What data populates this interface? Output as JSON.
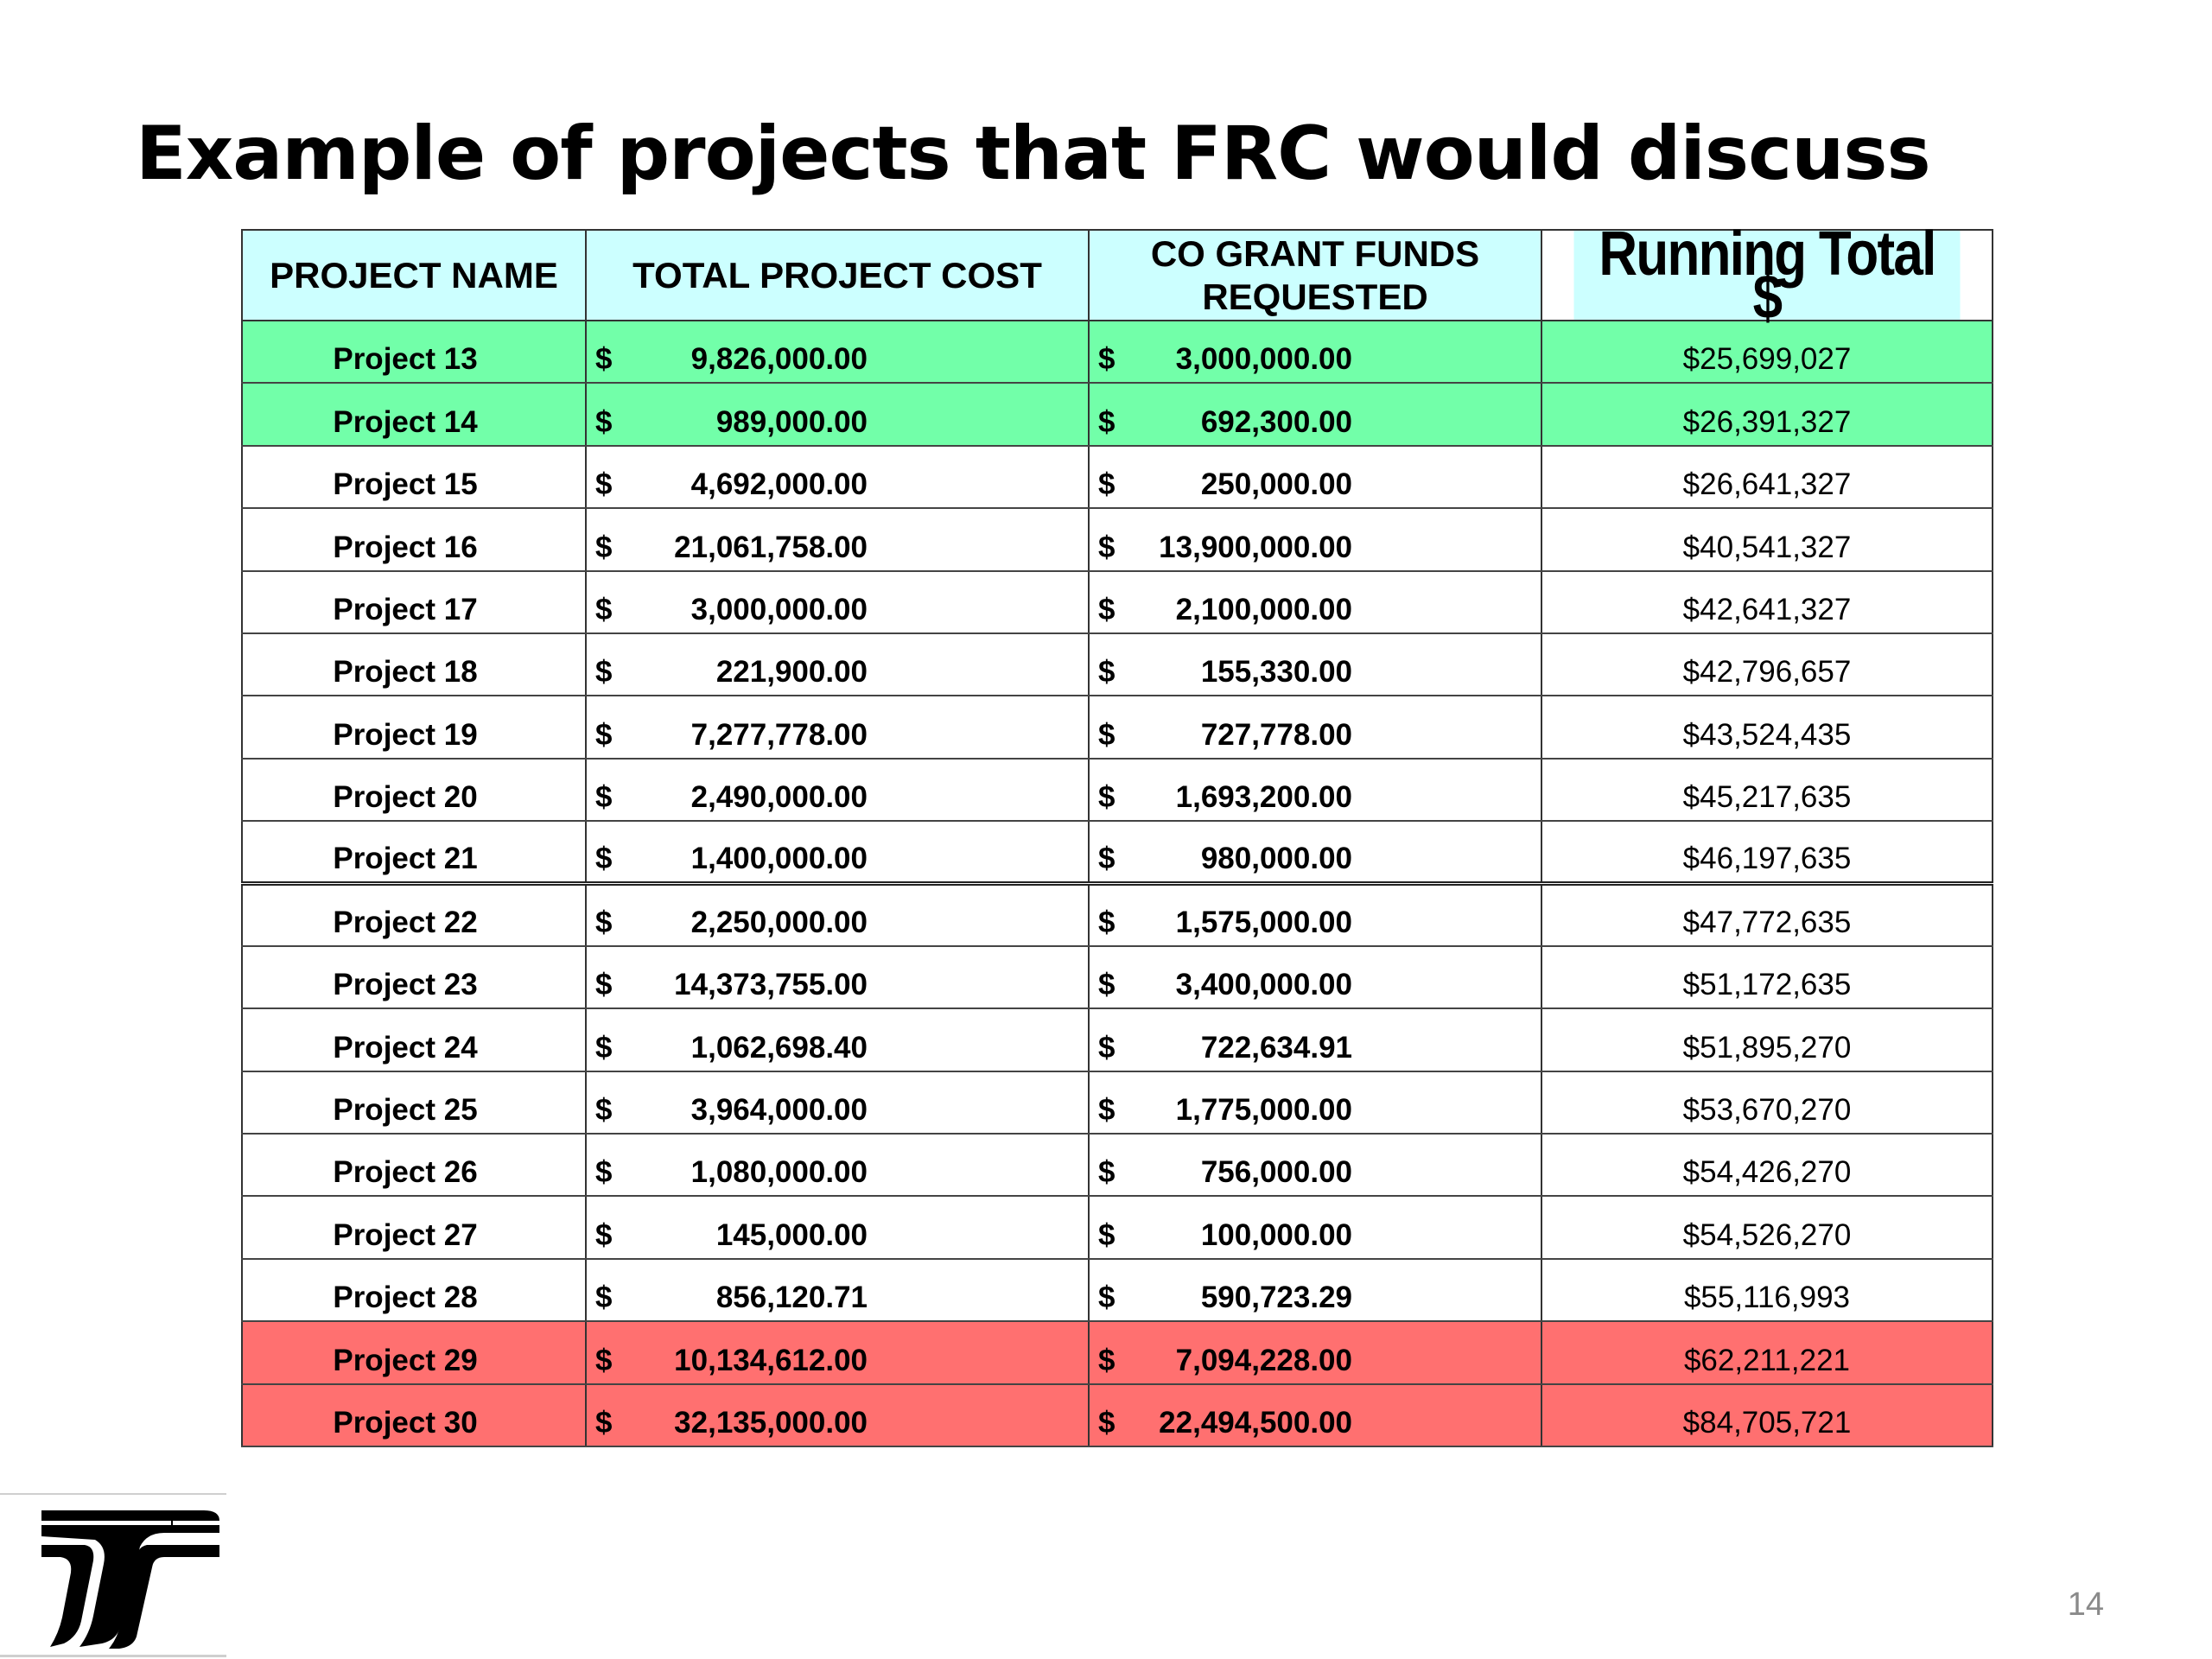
{
  "slide": {
    "title": "Example of projects that FRC would discuss",
    "page_number": "14"
  },
  "colors": {
    "header_bg": "#ccffff",
    "green_row": "#72ffa9",
    "red_row": "#ff7070"
  },
  "logo": {
    "icon": "stylized-T-logo"
  },
  "table": {
    "headers": {
      "name": "PROJECT NAME",
      "cost": "TOTAL PROJECT COST",
      "grant": "CO GRANT FUNDS REQUESTED",
      "running": "Running Total $"
    },
    "rows": [
      {
        "name": "Project 13",
        "cost_sign": "$",
        "cost": "9,826,000.00",
        "grant_sign": "$",
        "grant": "3,000,000.00",
        "running": "$25,699,027",
        "highlight": "green"
      },
      {
        "name": "Project 14",
        "cost_sign": "$",
        "cost": "989,000.00",
        "grant_sign": "$",
        "grant": "692,300.00",
        "running": "$26,391,327",
        "highlight": "green"
      },
      {
        "name": "Project 15",
        "cost_sign": "$",
        "cost": "4,692,000.00",
        "grant_sign": "$",
        "grant": "250,000.00",
        "running": "$26,641,327",
        "highlight": "none"
      },
      {
        "name": "Project 16",
        "cost_sign": "$",
        "cost": "21,061,758.00",
        "grant_sign": "$",
        "grant": "13,900,000.00",
        "running": "$40,541,327",
        "highlight": "none"
      },
      {
        "name": "Project 17",
        "cost_sign": "$",
        "cost": "3,000,000.00",
        "grant_sign": "$",
        "grant": "2,100,000.00",
        "running": "$42,641,327",
        "highlight": "none"
      },
      {
        "name": "Project 18",
        "cost_sign": "$",
        "cost": "221,900.00",
        "grant_sign": "$",
        "grant": "155,330.00",
        "running": "$42,796,657",
        "highlight": "none"
      },
      {
        "name": "Project 19",
        "cost_sign": "$",
        "cost": "7,277,778.00",
        "grant_sign": "$",
        "grant": "727,778.00",
        "running": "$43,524,435",
        "highlight": "none"
      },
      {
        "name": "Project 20",
        "cost_sign": "$",
        "cost": "2,490,000.00",
        "grant_sign": "$",
        "grant": "1,693,200.00",
        "running": "$45,217,635",
        "highlight": "none"
      },
      {
        "name": "Project 21",
        "cost_sign": "$",
        "cost": "1,400,000.00",
        "grant_sign": "$",
        "grant": "980,000.00",
        "running": "$46,197,635",
        "highlight": "none"
      },
      {
        "name": "Project 22",
        "cost_sign": "$",
        "cost": "2,250,000.00",
        "grant_sign": "$",
        "grant": "1,575,000.00",
        "running": "$47,772,635",
        "highlight": "none"
      },
      {
        "name": "Project 23",
        "cost_sign": "$",
        "cost": "14,373,755.00",
        "grant_sign": "$",
        "grant": "3,400,000.00",
        "running": "$51,172,635",
        "highlight": "none"
      },
      {
        "name": "Project 24",
        "cost_sign": "$",
        "cost": "1,062,698.40",
        "grant_sign": "$",
        "grant": "722,634.91",
        "running": "$51,895,270",
        "highlight": "none"
      },
      {
        "name": "Project 25",
        "cost_sign": "$",
        "cost": "3,964,000.00",
        "grant_sign": "$",
        "grant": "1,775,000.00",
        "running": "$53,670,270",
        "highlight": "none"
      },
      {
        "name": "Project 26",
        "cost_sign": "$",
        "cost": "1,080,000.00",
        "grant_sign": "$",
        "grant": "756,000.00",
        "running": "$54,426,270",
        "highlight": "none"
      },
      {
        "name": "Project 27",
        "cost_sign": "$",
        "cost": "145,000.00",
        "grant_sign": "$",
        "grant": "100,000.00",
        "running": "$54,526,270",
        "highlight": "none"
      },
      {
        "name": "Project 28",
        "cost_sign": "$",
        "cost": "856,120.71",
        "grant_sign": "$",
        "grant": "590,723.29",
        "running": "$55,116,993",
        "highlight": "none"
      },
      {
        "name": "Project 29",
        "cost_sign": "$",
        "cost": "10,134,612.00",
        "grant_sign": "$",
        "grant": "7,094,228.00",
        "running": "$62,211,221",
        "highlight": "red"
      },
      {
        "name": "Project 30",
        "cost_sign": "$",
        "cost": "32,135,000.00",
        "grant_sign": "$",
        "grant": "22,494,500.00",
        "running": "$84,705,721",
        "highlight": "red"
      }
    ]
  }
}
